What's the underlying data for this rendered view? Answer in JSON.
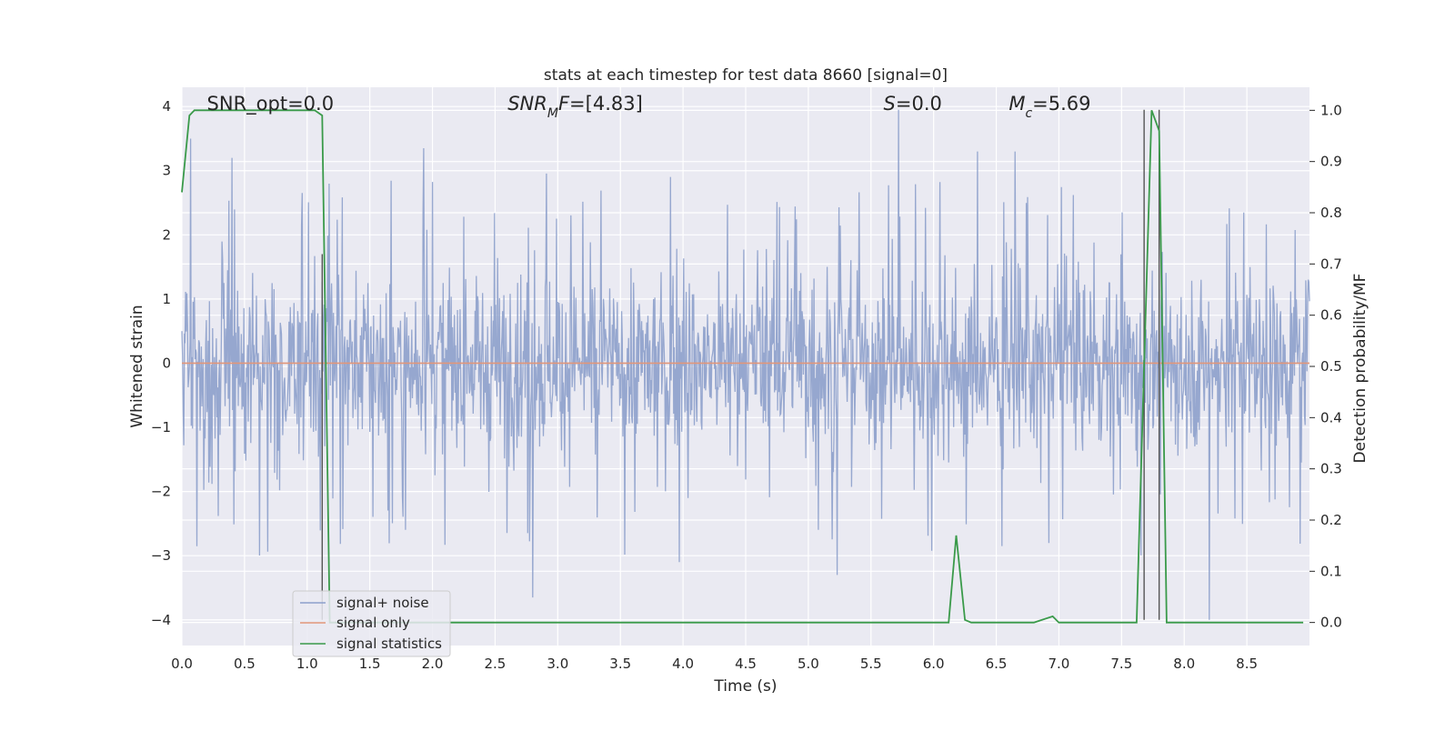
{
  "chart_data": {
    "type": "line",
    "title": "stats at each timestep for test data 8660 [signal=0]",
    "xlabel": "Time (s)",
    "ylabel": "Whitened strain",
    "y2label": "Detection probability/MF",
    "xlim": [
      0.0,
      9.0
    ],
    "ylim": [
      -4.4,
      4.3
    ],
    "y2lim": [
      -0.045,
      1.045
    ],
    "xticks": [
      "0.0",
      "0.5",
      "1.0",
      "1.5",
      "2.0",
      "2.5",
      "3.0",
      "3.5",
      "4.0",
      "4.5",
      "5.0",
      "5.5",
      "6.0",
      "6.5",
      "7.0",
      "7.5",
      "8.0",
      "8.5"
    ],
    "yticks": [
      "4",
      "3",
      "2",
      "1",
      "0",
      "−1",
      "−2",
      "−3",
      "−4"
    ],
    "y2ticks": [
      "1.0",
      "0.9",
      "0.8",
      "0.7",
      "0.6",
      "0.5",
      "0.4",
      "0.3",
      "0.2",
      "0.1",
      "0.0"
    ],
    "grid": true,
    "legend_position": "lower-left",
    "annotations": [
      {
        "name": "snr-opt",
        "text": "SNR_opt=0.0",
        "x": 0.2
      },
      {
        "name": "snr-mf",
        "text": "SNR_MF=[4.83]",
        "x": 2.6
      },
      {
        "name": "s-value",
        "text": "S=0.0",
        "x": 5.6
      },
      {
        "name": "mc-value",
        "text": "M_c=5.69",
        "x": 6.6
      }
    ],
    "series": [
      {
        "name": "signal+ noise",
        "color": "#8da0cb",
        "axis": "left",
        "envelope": {
          "typical_amplitude": 1.6,
          "peak_amplitude": 3.9
        },
        "notable_peaks": [
          {
            "x": 0.07,
            "y": 3.5
          },
          {
            "x": 0.4,
            "y": 3.2
          },
          {
            "x": 1.93,
            "y": 3.35
          },
          {
            "x": 2.8,
            "y": 3.25
          },
          {
            "x": 5.72,
            "y": 3.95
          },
          {
            "x": 6.35,
            "y": 3.3
          },
          {
            "x": 6.65,
            "y": 3.3
          },
          {
            "x": 2.8,
            "y": -3.65
          },
          {
            "x": 3.97,
            "y": -3.1
          },
          {
            "x": 8.2,
            "y": -4.0
          },
          {
            "x": 5.23,
            "y": -3.3
          }
        ]
      },
      {
        "name": "signal only",
        "color": "#e1967a",
        "axis": "left",
        "x": [
          0.0,
          9.0
        ],
        "values": [
          0.0,
          0.0
        ]
      },
      {
        "name": "signal statistics",
        "color": "#3a9a4a",
        "axis": "right",
        "x": [
          0.0,
          0.06,
          0.1,
          0.2,
          0.5,
          0.8,
          1.0,
          1.06,
          1.12,
          1.18,
          1.2,
          1.5,
          2.0,
          6.0,
          6.12,
          6.18,
          6.25,
          6.3,
          6.8,
          6.95,
          7.0,
          7.62,
          7.68,
          7.74,
          7.8,
          7.86,
          8.0,
          8.95
        ],
        "values": [
          0.84,
          0.99,
          1.0,
          1.0,
          1.0,
          1.0,
          1.0,
          1.0,
          0.99,
          0.0,
          0.0,
          0.0,
          0.0,
          0.0,
          0.0,
          0.17,
          0.005,
          0.0,
          0.0,
          0.012,
          0.0,
          0.0,
          0.5,
          1.0,
          0.96,
          0.0,
          0.0,
          0.0
        ]
      }
    ],
    "vertical_markers": [
      {
        "x": 1.12,
        "y_range": [
          -4.0,
          1.7
        ]
      },
      {
        "x": 7.68,
        "y_range": [
          -4.0,
          3.95
        ]
      },
      {
        "x": 7.8,
        "y_range": [
          -4.0,
          3.95
        ]
      }
    ]
  }
}
